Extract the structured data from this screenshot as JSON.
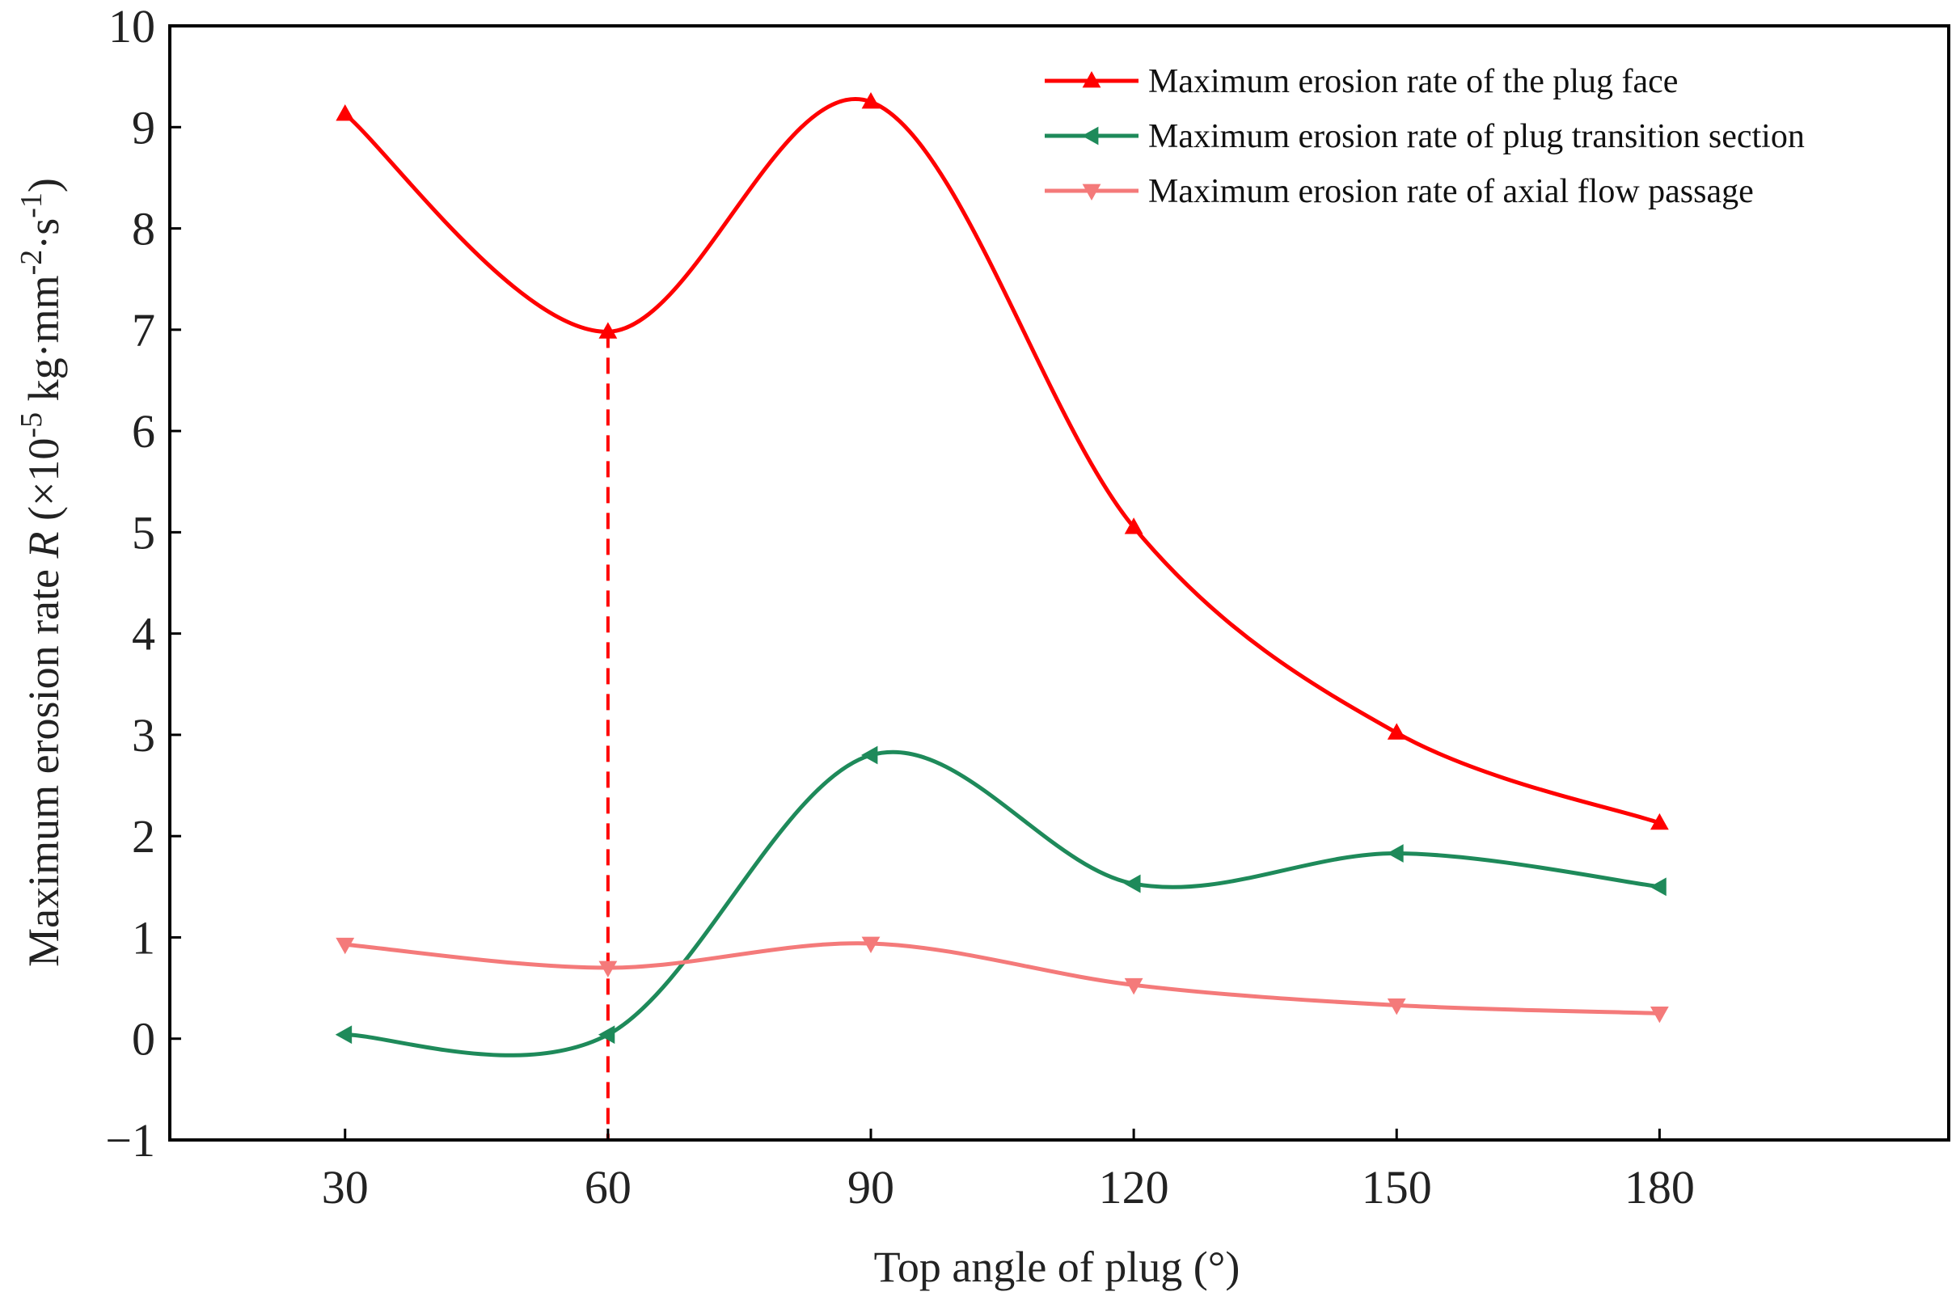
{
  "chart_data": {
    "type": "line",
    "title": "",
    "xlabel": "Top angle of plug (°)",
    "ylabel": {
      "prefix": "Maximum erosion rate ",
      "symbol": "R",
      "unit_open": " (×10",
      "exp1": "-5",
      "unit_mid": " kg·mm",
      "exp2": "-2",
      "unit_mid2": "·s",
      "exp3": "-1",
      "unit_close": ")"
    },
    "x": [
      30,
      60,
      90,
      120,
      150,
      180
    ],
    "xticks": [
      "30",
      "60",
      "90",
      "120",
      "150",
      "180"
    ],
    "xlim": [
      10,
      213
    ],
    "yticks": [
      "−1",
      "0",
      "1",
      "2",
      "3",
      "4",
      "5",
      "6",
      "7",
      "8",
      "9",
      "10"
    ],
    "ytick_values": [
      -1,
      0,
      1,
      2,
      3,
      4,
      5,
      6,
      7,
      8,
      9,
      10
    ],
    "ylim": [
      -1,
      10
    ],
    "grid": false,
    "legend_position": "top-right",
    "series": [
      {
        "name": "Maximum erosion rate of the plug face",
        "color": "#ff0000",
        "marker": "triangle-up",
        "values": [
          9.13,
          6.98,
          9.25,
          5.05,
          3.02,
          2.13
        ]
      },
      {
        "name": "Maximum erosion rate of plug transition section",
        "color": "#1e8a5a",
        "marker": "triangle-left",
        "values": [
          0.04,
          0.04,
          2.8,
          1.53,
          1.83,
          1.5
        ]
      },
      {
        "name": "Maximum erosion rate of axial flow passage",
        "color": "#f47a7a",
        "marker": "triangle-down",
        "values": [
          0.93,
          0.7,
          0.94,
          0.53,
          0.33,
          0.25
        ]
      }
    ],
    "annotations": [
      {
        "type": "vertical-dashed-line",
        "x": 60,
        "y_from": -1,
        "y_to": 6.98,
        "color": "#ff0000"
      }
    ]
  }
}
